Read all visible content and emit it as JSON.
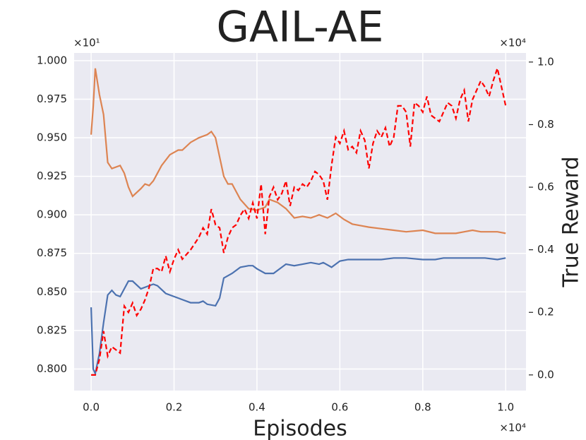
{
  "chart_data": {
    "type": "line",
    "title": "GAIL-AE",
    "xlabel": "Episodes",
    "y2label": "True Reward",
    "x_multiplier": "×10⁴",
    "y_multiplier": "×10¹",
    "y2_multiplier": "×10⁴",
    "background": "#eaeaf2",
    "grid": true,
    "xlim": [
      -0.041,
      1.049
    ],
    "ylim": [
      0.786,
      1.005
    ],
    "y2lim": [
      -0.05,
      1.029
    ],
    "xticks": [
      {
        "value": 0,
        "label": "0.0"
      },
      {
        "value": 0.2,
        "label": "0.2"
      },
      {
        "value": 0.4,
        "label": "0.4"
      },
      {
        "value": 0.6,
        "label": "0.6"
      },
      {
        "value": 0.8,
        "label": "0.8"
      },
      {
        "value": 1,
        "label": "1.0"
      }
    ],
    "yticks": [
      {
        "value": 0.8,
        "label": "0.800"
      },
      {
        "value": 0.825,
        "label": "0.825"
      },
      {
        "value": 0.85,
        "label": "0.850"
      },
      {
        "value": 0.875,
        "label": "0.875"
      },
      {
        "value": 0.9,
        "label": "0.900"
      },
      {
        "value": 0.925,
        "label": "0.925"
      },
      {
        "value": 0.95,
        "label": "0.950"
      },
      {
        "value": 0.975,
        "label": "0.975"
      },
      {
        "value": 1,
        "label": "1.000"
      }
    ],
    "y2ticks": [
      {
        "value": 0,
        "label": "0.0"
      },
      {
        "value": 0.2,
        "label": "0.2"
      },
      {
        "value": 0.4,
        "label": "0.4"
      },
      {
        "value": 0.6,
        "label": "0.6"
      },
      {
        "value": 0.8,
        "label": "0.8"
      },
      {
        "value": 1,
        "label": "1.0"
      }
    ],
    "series": [
      {
        "color": "#dd8452",
        "dash": false,
        "x": [
          0,
          0.005,
          0.01,
          0.02,
          0.03,
          0.04,
          0.05,
          0.07,
          0.08,
          0.09,
          0.1,
          0.12,
          0.13,
          0.14,
          0.15,
          0.17,
          0.19,
          0.21,
          0.22,
          0.24,
          0.26,
          0.28,
          0.29,
          0.3,
          0.32,
          0.33,
          0.34,
          0.36,
          0.38,
          0.4,
          0.42,
          0.43,
          0.45,
          0.47,
          0.49,
          0.51,
          0.53,
          0.55,
          0.57,
          0.59,
          0.61,
          0.63,
          0.65,
          0.67,
          0.7,
          0.73,
          0.76,
          0.8,
          0.83,
          0.86,
          0.88,
          0.9,
          0.92,
          0.94,
          0.96,
          0.98,
          1
        ],
        "values": [
          0.952,
          0.97,
          0.995,
          0.978,
          0.965,
          0.934,
          0.93,
          0.932,
          0.927,
          0.918,
          0.912,
          0.917,
          0.92,
          0.919,
          0.922,
          0.932,
          0.939,
          0.942,
          0.942,
          0.947,
          0.95,
          0.952,
          0.954,
          0.95,
          0.925,
          0.92,
          0.92,
          0.91,
          0.904,
          0.903,
          0.905,
          0.91,
          0.908,
          0.904,
          0.898,
          0.899,
          0.898,
          0.9,
          0.898,
          0.901,
          0.897,
          0.894,
          0.893,
          0.892,
          0.891,
          0.89,
          0.889,
          0.89,
          0.888,
          0.888,
          0.888,
          0.889,
          0.89,
          0.889,
          0.889,
          0.889,
          0.888
        ]
      },
      {
        "color": "#4c72b0",
        "dash": false,
        "x": [
          0,
          0.005,
          0.01,
          0.02,
          0.03,
          0.04,
          0.05,
          0.06,
          0.07,
          0.09,
          0.1,
          0.12,
          0.13,
          0.15,
          0.16,
          0.18,
          0.2,
          0.22,
          0.24,
          0.26,
          0.27,
          0.28,
          0.3,
          0.31,
          0.32,
          0.34,
          0.36,
          0.38,
          0.39,
          0.4,
          0.42,
          0.44,
          0.45,
          0.47,
          0.49,
          0.51,
          0.53,
          0.55,
          0.56,
          0.58,
          0.6,
          0.62,
          0.65,
          0.7,
          0.73,
          0.76,
          0.8,
          0.83,
          0.85,
          0.88,
          0.91,
          0.95,
          0.98,
          1
        ],
        "values": [
          0.84,
          0.8,
          0.797,
          0.81,
          0.83,
          0.848,
          0.851,
          0.848,
          0.847,
          0.857,
          0.857,
          0.852,
          0.853,
          0.855,
          0.854,
          0.849,
          0.847,
          0.845,
          0.843,
          0.843,
          0.844,
          0.842,
          0.841,
          0.846,
          0.859,
          0.862,
          0.866,
          0.867,
          0.867,
          0.865,
          0.862,
          0.862,
          0.864,
          0.868,
          0.867,
          0.868,
          0.869,
          0.868,
          0.869,
          0.866,
          0.87,
          0.871,
          0.871,
          0.871,
          0.872,
          0.872,
          0.871,
          0.871,
          0.872,
          0.872,
          0.872,
          0.872,
          0.871,
          0.872
        ]
      },
      {
        "color": "#ff0000",
        "dash": true,
        "axis": "y2",
        "x": [
          0,
          0.01,
          0.02,
          0.03,
          0.04,
          0.05,
          0.06,
          0.07,
          0.08,
          0.09,
          0.1,
          0.11,
          0.12,
          0.13,
          0.14,
          0.15,
          0.16,
          0.17,
          0.18,
          0.19,
          0.2,
          0.21,
          0.22,
          0.24,
          0.25,
          0.26,
          0.27,
          0.28,
          0.29,
          0.3,
          0.31,
          0.32,
          0.33,
          0.34,
          0.35,
          0.36,
          0.37,
          0.38,
          0.39,
          0.4,
          0.41,
          0.42,
          0.43,
          0.44,
          0.45,
          0.46,
          0.47,
          0.48,
          0.49,
          0.5,
          0.51,
          0.52,
          0.53,
          0.54,
          0.55,
          0.56,
          0.57,
          0.58,
          0.59,
          0.6,
          0.61,
          0.62,
          0.63,
          0.64,
          0.65,
          0.66,
          0.67,
          0.68,
          0.69,
          0.7,
          0.71,
          0.72,
          0.73,
          0.74,
          0.75,
          0.76,
          0.77,
          0.78,
          0.79,
          0.8,
          0.81,
          0.82,
          0.83,
          0.84,
          0.85,
          0.86,
          0.87,
          0.88,
          0.89,
          0.9,
          0.91,
          0.92,
          0.93,
          0.94,
          0.95,
          0.96,
          0.97,
          0.98,
          1
        ],
        "values": [
          0,
          0,
          0.05,
          0.14,
          0.06,
          0.09,
          0.08,
          0.07,
          0.22,
          0.2,
          0.23,
          0.19,
          0.21,
          0.24,
          0.28,
          0.34,
          0.34,
          0.33,
          0.38,
          0.33,
          0.37,
          0.4,
          0.37,
          0.4,
          0.42,
          0.44,
          0.47,
          0.45,
          0.53,
          0.48,
          0.47,
          0.39,
          0.44,
          0.47,
          0.48,
          0.51,
          0.53,
          0.5,
          0.55,
          0.5,
          0.61,
          0.45,
          0.57,
          0.6,
          0.56,
          0.58,
          0.62,
          0.54,
          0.6,
          0.59,
          0.61,
          0.6,
          0.62,
          0.65,
          0.64,
          0.62,
          0.56,
          0.67,
          0.76,
          0.74,
          0.78,
          0.72,
          0.73,
          0.71,
          0.78,
          0.75,
          0.66,
          0.74,
          0.78,
          0.76,
          0.79,
          0.73,
          0.76,
          0.86,
          0.86,
          0.84,
          0.73,
          0.87,
          0.86,
          0.84,
          0.89,
          0.83,
          0.82,
          0.81,
          0.84,
          0.87,
          0.86,
          0.82,
          0.88,
          0.91,
          0.81,
          0.88,
          0.91,
          0.94,
          0.92,
          0.89,
          0.94,
          0.98,
          0.86
        ]
      }
    ]
  }
}
